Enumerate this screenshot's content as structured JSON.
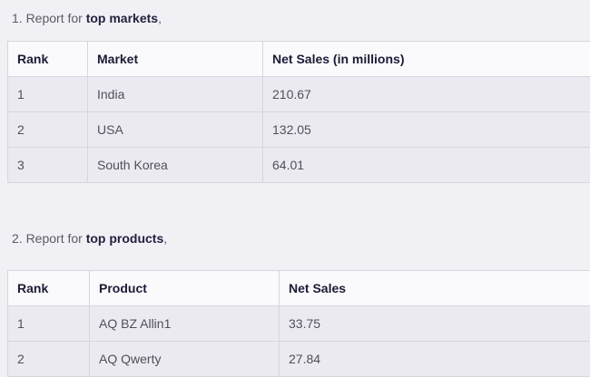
{
  "colors": {
    "page_bg": "#f1f0f5",
    "header_bg": "#fafafc",
    "row_bg": "#ebeaf1",
    "border": "#d7d5de",
    "header_text": "#1b1b36",
    "cell_text": "#50505a",
    "heading_text": "#5b5b66",
    "heading_bold_text": "#22223f"
  },
  "sections": [
    {
      "heading": {
        "prefix": "1. Report for ",
        "bold": "top markets",
        "suffix": ","
      },
      "table": {
        "columns": [
          "Rank",
          "Market",
          "Net Sales (in millions)"
        ],
        "rows": [
          [
            "1",
            "India",
            "210.67"
          ],
          [
            "2",
            "USA",
            "132.05"
          ],
          [
            "3",
            "South Korea",
            "64.01"
          ]
        ]
      }
    },
    {
      "heading": {
        "prefix": "2. Report for ",
        "bold": "top products",
        "suffix": ","
      },
      "table": {
        "columns": [
          "Rank",
          "Product",
          "Net Sales"
        ],
        "rows": [
          [
            "1",
            "AQ BZ Allin1",
            "33.75"
          ],
          [
            "2",
            "AQ Qwerty",
            "27.84"
          ]
        ]
      }
    }
  ]
}
